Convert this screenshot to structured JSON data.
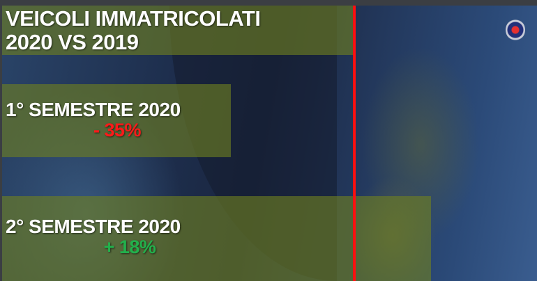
{
  "title_line1": "VEICOLI IMMATRICOLATI",
  "title_line2": "2020 VS 2019",
  "colors": {
    "negative": "#ff1a1a",
    "positive": "#22b14c",
    "baseline": "#ff1010",
    "bar_fill": "#708020"
  },
  "icons": {
    "logo": "scania-griffin-logo"
  },
  "chart_data": {
    "type": "bar",
    "orientation": "horizontal",
    "baseline_label": "2019",
    "categories": [
      "1° SEMESTRE 2020",
      "2° SEMESTRE 2020"
    ],
    "values": [
      -35,
      18
    ],
    "value_labels": [
      "- 35%",
      "+ 18%"
    ],
    "unit": "% vs 2019",
    "grid": false
  }
}
